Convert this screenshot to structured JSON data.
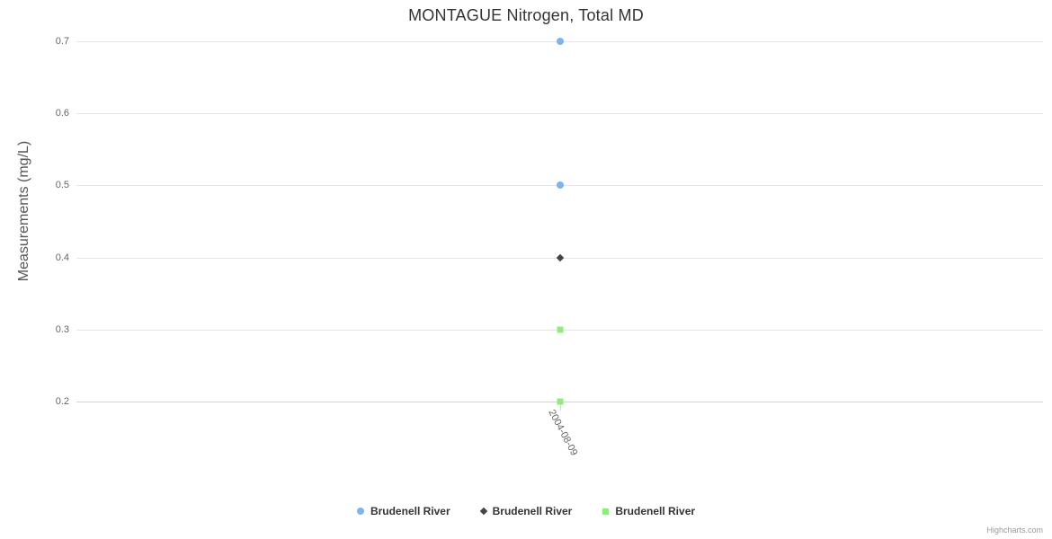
{
  "title": "MONTAGUE Nitrogen, Total MD",
  "credits_label": "Highcharts.com",
  "colors": {
    "grid": "#e6e6e6",
    "axis_line": "#ccd6eb",
    "tick_label": "#666666",
    "axis_title": "#555555",
    "chart_title": "#333333",
    "legend_text": "#333333",
    "credits": "#999999",
    "series_blue": "#7cb5ec",
    "series_dark": "#434348",
    "series_green": "#90ed7d"
  },
  "chart_data": {
    "type": "scatter",
    "title": "MONTAGUE Nitrogen, Total MD",
    "xlabel": "",
    "ylabel": "Measurements (mg/L)",
    "categories": [
      "2004-08-09"
    ],
    "ylim": [
      0.2,
      0.7
    ],
    "yticks": [
      0.2,
      0.3,
      0.4,
      0.5,
      0.6,
      0.7
    ],
    "ytick_format_decimals": 1,
    "grid": true,
    "legend_position": "bottom",
    "series": [
      {
        "name": "Brudenell River",
        "marker": "circle",
        "color": "#7cb5ec",
        "points": [
          {
            "x": "2004-08-09",
            "y": 0.7
          },
          {
            "x": "2004-08-09",
            "y": 0.5
          }
        ]
      },
      {
        "name": "Brudenell River",
        "marker": "diamond",
        "color": "#434348",
        "points": [
          {
            "x": "2004-08-09",
            "y": 0.4
          }
        ]
      },
      {
        "name": "Brudenell River",
        "marker": "square",
        "color": "#90ed7d",
        "points": [
          {
            "x": "2004-08-09",
            "y": 0.3
          },
          {
            "x": "2004-08-09",
            "y": 0.2
          }
        ]
      }
    ]
  }
}
